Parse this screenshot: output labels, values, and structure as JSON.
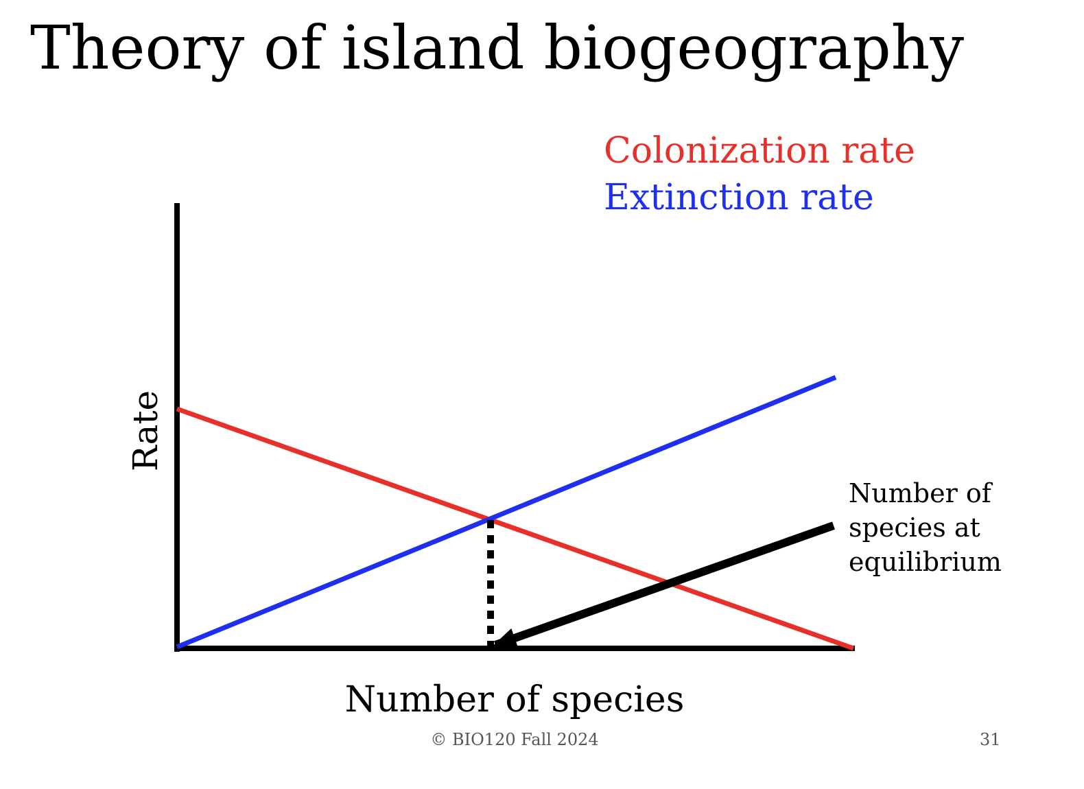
{
  "slide": {
    "title": "Theory of island biogeography",
    "footer": "© BIO120 Fall 2024",
    "page_number": "31"
  },
  "diagram": {
    "legend": [
      {
        "label": "Colonization rate",
        "color": "#e8302a"
      },
      {
        "label": "Extinction rate",
        "color": "#1e2ff0"
      }
    ],
    "y_axis_label": "Rate",
    "x_axis_label": "Number of species",
    "annotation": "Number of\nspecies at\nequilibrium",
    "colors": {
      "axis": "#000000",
      "colonization": "#e8302a",
      "extinction": "#1e2ff0",
      "arrow": "#000000"
    }
  }
}
